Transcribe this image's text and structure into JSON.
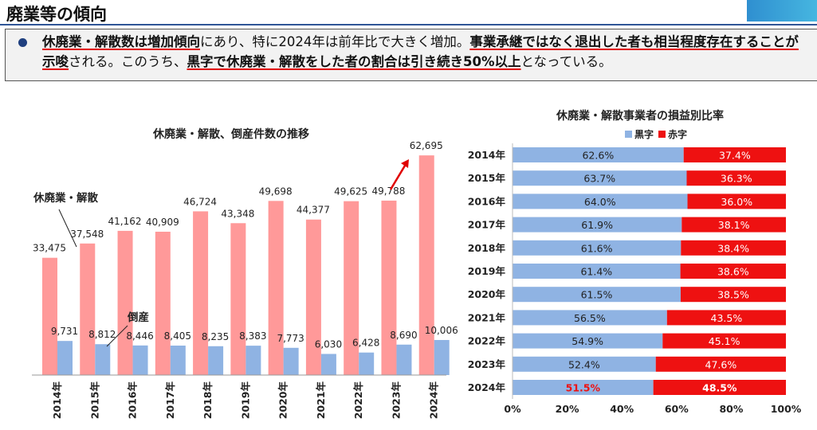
{
  "header": {
    "title": "廃業等の傾向"
  },
  "summary": {
    "segments": [
      {
        "text": "休廃業・解散数は増加傾向",
        "em": true
      },
      {
        "text": "にあり、特に2024年は前年比で大きく増加。",
        "em": false
      },
      {
        "text": "事業承継ではなく退出した者も相当程度存在することが示唆",
        "em": true
      },
      {
        "text": "される。このうち、",
        "em": false
      },
      {
        "text": "黒字で休廃業・解散をした者の割合は引き続き50%以上",
        "em": true
      },
      {
        "text": "となっている。",
        "em": false
      }
    ]
  },
  "colors": {
    "pink": "#ff9999",
    "blue": "#8fb3e3",
    "red": "#ee1111",
    "arrow": "#e00000",
    "accent": "#1f3f7f"
  },
  "chart_data": [
    {
      "type": "bar",
      "title": "休廃業・解散、倒産件数の推移",
      "categories": [
        "2014年",
        "2015年",
        "2016年",
        "2017年",
        "2018年",
        "2019年",
        "2020年",
        "2021年",
        "2022年",
        "2023年",
        "2024年"
      ],
      "series": [
        {
          "name": "休廃業・解散",
          "values": [
            33475,
            37548,
            41162,
            40909,
            46724,
            43348,
            49698,
            44377,
            49625,
            49788,
            62695
          ],
          "labels": [
            "33,475",
            "37,548",
            "41,162",
            "40,909",
            "46,724",
            "43,348",
            "49,698",
            "44,377",
            "49,625",
            "49,788",
            "62,695"
          ]
        },
        {
          "name": "倒産",
          "values": [
            9731,
            8812,
            8446,
            8405,
            8235,
            8383,
            7773,
            6030,
            6428,
            8690,
            10006
          ],
          "labels": [
            "9,731",
            "8,812",
            "8,446",
            "8,405",
            "8,235",
            "8,383",
            "7,773",
            "6,030",
            "6,428",
            "8,690",
            "10,006"
          ]
        }
      ],
      "ylim": [
        0,
        65000
      ],
      "grid": false
    },
    {
      "type": "bar",
      "orientation": "horizontal-stacked-100",
      "title": "休廃業・解散事業者の損益別比率",
      "categories": [
        "2014年",
        "2015年",
        "2016年",
        "2017年",
        "2018年",
        "2019年",
        "2020年",
        "2021年",
        "2022年",
        "2023年",
        "2024年"
      ],
      "series": [
        {
          "name": "黒字",
          "values": [
            62.6,
            63.7,
            64.0,
            61.9,
            61.6,
            61.4,
            61.5,
            56.5,
            54.9,
            52.4,
            51.5
          ],
          "labels": [
            "62.6%",
            "63.7%",
            "64.0%",
            "61.9%",
            "61.6%",
            "61.4%",
            "61.5%",
            "56.5%",
            "54.9%",
            "52.4%",
            "51.5%"
          ]
        },
        {
          "name": "赤字",
          "values": [
            37.4,
            36.3,
            36.0,
            38.1,
            38.4,
            38.6,
            38.5,
            43.5,
            45.1,
            47.6,
            48.5
          ],
          "labels": [
            "37.4%",
            "36.3%",
            "36.0%",
            "38.1%",
            "38.4%",
            "38.6%",
            "38.5%",
            "43.5%",
            "45.1%",
            "47.6%",
            "48.5%"
          ]
        }
      ],
      "xticks": [
        "0%",
        "20%",
        "40%",
        "60%",
        "80%",
        "100%"
      ],
      "xlim": [
        0,
        100
      ],
      "legend": "top-center",
      "grid": false
    }
  ]
}
